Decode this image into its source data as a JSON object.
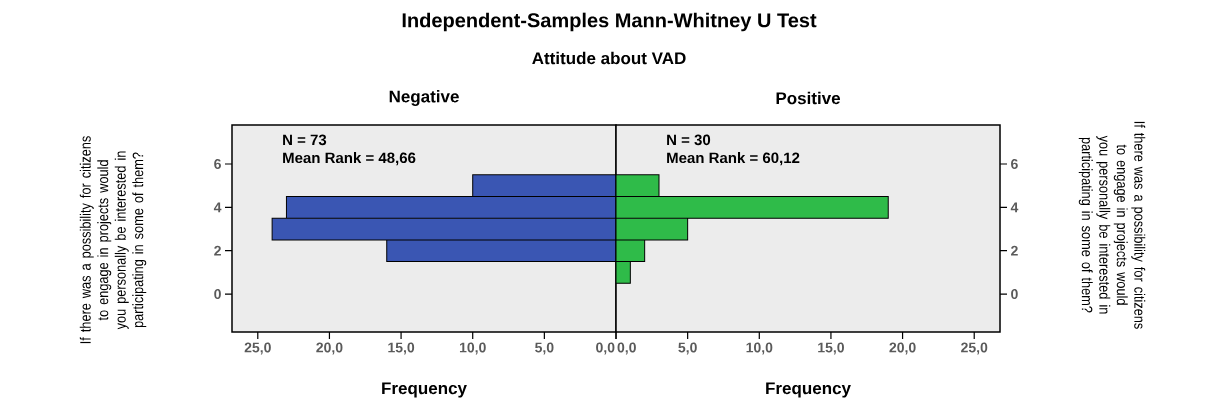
{
  "chart_data": [
    {
      "type": "bar",
      "orientation": "horizontal",
      "title": "Negative",
      "xlabel": "Frequency",
      "ylabel": "If there was a possibility for citizens to engage in projects would you personally be interested in participating in some of them?",
      "annotations": [
        "Independent-Samples Mann-Whitney U Test",
        "Attitude about VAD",
        "N = 73",
        "Mean Rank = 48,66"
      ],
      "x": [
        2,
        3,
        4,
        5
      ],
      "series": [
        {
          "color": "#3a56b3",
          "values": [
            16,
            24,
            23,
            10
          ]
        }
      ],
      "xlim": [
        26.8,
        0
      ],
      "xticks": [
        {
          "value": 25,
          "label": "25,0"
        },
        {
          "value": 20,
          "label": "20,0"
        },
        {
          "value": 15,
          "label": "15,0"
        },
        {
          "value": 10,
          "label": "10,0"
        },
        {
          "value": 5,
          "label": "5,0"
        },
        {
          "value": 0,
          "label": "0,0"
        }
      ],
      "ylim": [
        -1.75,
        7.8
      ],
      "yticks": [
        0,
        2,
        4,
        6
      ],
      "grid": false
    },
    {
      "type": "bar",
      "orientation": "horizontal",
      "title": "Positive",
      "xlabel": "Frequency",
      "ylabel": "If there was a possibility for citizens to engage in projects would you personally be interested in participating in some of them?",
      "annotations": [
        "N = 30",
        "Mean Rank = 60,12"
      ],
      "x": [
        1,
        2,
        3,
        4,
        5
      ],
      "series": [
        {
          "color": "#2fbb49",
          "values": [
            1,
            2,
            5,
            19,
            3
          ]
        }
      ],
      "xlim": [
        0,
        26.8
      ],
      "xticks": [
        {
          "value": 0,
          "label": "0,0"
        },
        {
          "value": 5,
          "label": "5,0"
        },
        {
          "value": 10,
          "label": "10,0"
        },
        {
          "value": 15,
          "label": "15,0"
        },
        {
          "value": 20,
          "label": "20,0"
        },
        {
          "value": 25,
          "label": "25,0"
        }
      ],
      "ylim": [
        -1.75,
        7.8
      ],
      "yticks": [
        0,
        2,
        4,
        6
      ],
      "grid": false
    }
  ]
}
